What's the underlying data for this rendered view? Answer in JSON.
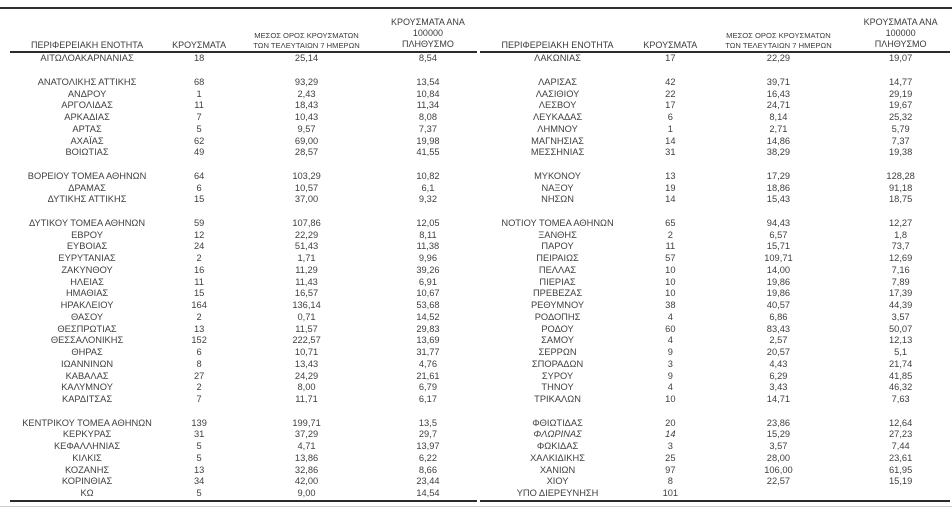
{
  "headers": {
    "region": "ΠΕΡΙΦΕΡΕΙΑΚΗ ΕΝΟΤΗΤΑ",
    "cases": "ΚΡΟΥΣΜΑΤΑ",
    "avg7_line1": "ΜΕΣΟΣ ΟΡΟΣ ΚΡΟΥΣΜΑΤΩΝ",
    "avg7_line2": "ΤΩΝ ΤΕΛΕΥΤΑΙΩΝ 7 ΗΜΕΡΩΝ",
    "per100k_line1": "ΚΡΟΥΣΜΑΤΑ ΑΝΑ 100000",
    "per100k_line2": "ΠΛΗΘΥΣΜΟ"
  },
  "left_table": {
    "rows": [
      {
        "region": "ΑΙΤΩΛΟΑΚΑΡΝΑΝΙΑΣ",
        "cases": "18",
        "avg7": "25,14",
        "per100k": "8,54"
      },
      {
        "spacer": true
      },
      {
        "region": "ΑΝΑΤΟΛΙΚΗΣ ΑΤΤΙΚΗΣ",
        "cases": "68",
        "avg7": "93,29",
        "per100k": "13,54"
      },
      {
        "region": "ΑΝΔΡΟΥ",
        "cases": "1",
        "avg7": "2,43",
        "per100k": "10,84"
      },
      {
        "region": "ΑΡΓΟΛΙΔΑΣ",
        "cases": "11",
        "avg7": "18,43",
        "per100k": "11,34"
      },
      {
        "region": "ΑΡΚΑΔΙΑΣ",
        "cases": "7",
        "avg7": "10,43",
        "per100k": "8,08"
      },
      {
        "region": "ΑΡΤΑΣ",
        "cases": "5",
        "avg7": "9,57",
        "per100k": "7,37"
      },
      {
        "region": "ΑΧΑΪΑΣ",
        "cases": "62",
        "avg7": "69,00",
        "per100k": "19,98"
      },
      {
        "region": "ΒΟΙΩΤΙΑΣ",
        "cases": "49",
        "avg7": "28,57",
        "per100k": "41,55"
      },
      {
        "spacer": true
      },
      {
        "region": "ΒΟΡΕΙΟΥ ΤΟΜΕΑ ΑΘΗΝΩΝ",
        "cases": "64",
        "avg7": "103,29",
        "per100k": "10,82"
      },
      {
        "region": "ΔΡΑΜΑΣ",
        "cases": "6",
        "avg7": "10,57",
        "per100k": "6,1"
      },
      {
        "region": "ΔΥΤΙΚΗΣ ΑΤΤΙΚΗΣ",
        "cases": "15",
        "avg7": "37,00",
        "per100k": "9,32"
      },
      {
        "spacer": true
      },
      {
        "region": "ΔΥΤΙΚΟΥ ΤΟΜΕΑ ΑΘΗΝΩΝ",
        "cases": "59",
        "avg7": "107,86",
        "per100k": "12,05"
      },
      {
        "region": "ΕΒΡΟΥ",
        "cases": "12",
        "avg7": "22,29",
        "per100k": "8,11"
      },
      {
        "region": "ΕΥΒΟΙΑΣ",
        "cases": "24",
        "avg7": "51,43",
        "per100k": "11,38"
      },
      {
        "region": "ΕΥΡΥΤΑΝΙΑΣ",
        "cases": "2",
        "avg7": "1,71",
        "per100k": "9,96"
      },
      {
        "region": "ΖΑΚΥΝΘΟΥ",
        "cases": "16",
        "avg7": "11,29",
        "per100k": "39,26"
      },
      {
        "region": "ΗΛΕΙΑΣ",
        "cases": "11",
        "avg7": "11,43",
        "per100k": "6,91"
      },
      {
        "region": "ΗΜΑΘΙΑΣ",
        "cases": "15",
        "avg7": "16,57",
        "per100k": "10,67"
      },
      {
        "region": "ΗΡΑΚΛΕΙΟΥ",
        "cases": "164",
        "avg7": "136,14",
        "per100k": "53,68"
      },
      {
        "region": "ΘΑΣΟΥ",
        "cases": "2",
        "avg7": "0,71",
        "per100k": "14,52"
      },
      {
        "region": "ΘΕΣΠΡΩΤΙΑΣ",
        "cases": "13",
        "avg7": "11,57",
        "per100k": "29,83"
      },
      {
        "region": "ΘΕΣΣΑΛΟΝΙΚΗΣ",
        "cases": "152",
        "avg7": "222,57",
        "per100k": "13,69"
      },
      {
        "region": "ΘΗΡΑΣ",
        "cases": "6",
        "avg7": "10,71",
        "per100k": "31,77"
      },
      {
        "region": "ΙΩΑΝΝΙΝΩΝ",
        "cases": "8",
        "avg7": "13,43",
        "per100k": "4,76"
      },
      {
        "region": "ΚΑΒΑΛΑΣ",
        "cases": "27",
        "avg7": "24,29",
        "per100k": "21,61"
      },
      {
        "region": "ΚΑΛΥΜΝΟΥ",
        "cases": "2",
        "avg7": "8,00",
        "per100k": "6,79"
      },
      {
        "region": "ΚΑΡΔΙΤΣΑΣ",
        "cases": "7",
        "avg7": "11,71",
        "per100k": "6,17"
      },
      {
        "spacer": true
      },
      {
        "region": "ΚΕΝΤΡΙΚΟΥ ΤΟΜΕΑ ΑΘΗΝΩΝ",
        "cases": "139",
        "avg7": "199,71",
        "per100k": "13,5"
      },
      {
        "region": "ΚΕΡΚΥΡΑΣ",
        "cases": "31",
        "avg7": "37,29",
        "per100k": "29,7"
      },
      {
        "region": "ΚΕΦΑΛΛΗΝΙΑΣ",
        "cases": "5",
        "avg7": "4,71",
        "per100k": "13,97"
      },
      {
        "region": "ΚΙΛΚΙΣ",
        "cases": "5",
        "avg7": "13,86",
        "per100k": "6,22"
      },
      {
        "region": "ΚΟΖΑΝΗΣ",
        "cases": "13",
        "avg7": "32,86",
        "per100k": "8,66"
      },
      {
        "region": "ΚΟΡΙΝΘΙΑΣ",
        "cases": "34",
        "avg7": "42,00",
        "per100k": "23,44"
      },
      {
        "region": "ΚΩ",
        "cases": "5",
        "avg7": "9,00",
        "per100k": "14,54"
      }
    ]
  },
  "right_table": {
    "rows": [
      {
        "region": "ΛΑΚΩΝΙΑΣ",
        "cases": "17",
        "avg7": "22,29",
        "per100k": "19,07"
      },
      {
        "spacer": true
      },
      {
        "region": "ΛΑΡΙΣΑΣ",
        "cases": "42",
        "avg7": "39,71",
        "per100k": "14,77"
      },
      {
        "region": "ΛΑΣΙΘΙΟΥ",
        "cases": "22",
        "avg7": "16,43",
        "per100k": "29,19"
      },
      {
        "region": "ΛΕΣΒΟΥ",
        "cases": "17",
        "avg7": "24,71",
        "per100k": "19,67"
      },
      {
        "region": "ΛΕΥΚΑΔΑΣ",
        "cases": "6",
        "avg7": "8,14",
        "per100k": "25,32"
      },
      {
        "region": "ΛΗΜΝΟΥ",
        "cases": "1",
        "avg7": "2,71",
        "per100k": "5,79"
      },
      {
        "region": "ΜΑΓΝΗΣΙΑΣ",
        "cases": "14",
        "avg7": "14,86",
        "per100k": "7,37"
      },
      {
        "region": "ΜΕΣΣΗΝΙΑΣ",
        "cases": "31",
        "avg7": "38,29",
        "per100k": "19,38"
      },
      {
        "spacer": true
      },
      {
        "region": "ΜΥΚΟΝΟΥ",
        "cases": "13",
        "avg7": "17,29",
        "per100k": "128,28"
      },
      {
        "region": "ΝΑΞΟΥ",
        "cases": "19",
        "avg7": "18,86",
        "per100k": "91,18"
      },
      {
        "region": "ΝΗΣΩΝ",
        "cases": "14",
        "avg7": "15,43",
        "per100k": "18,75"
      },
      {
        "spacer": true
      },
      {
        "region": "ΝΟΤΙΟΥ ΤΟΜΕΑ ΑΘΗΝΩΝ",
        "cases": "65",
        "avg7": "94,43",
        "per100k": "12,27"
      },
      {
        "region": "ΞΑΝΘΗΣ",
        "cases": "2",
        "avg7": "6,57",
        "per100k": "1,8"
      },
      {
        "region": "ΠΑΡΟΥ",
        "cases": "11",
        "avg7": "15,71",
        "per100k": "73,7"
      },
      {
        "region": "ΠΕΙΡΑΙΩΣ",
        "cases": "57",
        "avg7": "109,71",
        "per100k": "12,69"
      },
      {
        "region": "ΠΕΛΛΑΣ",
        "cases": "10",
        "avg7": "14,00",
        "per100k": "7,16"
      },
      {
        "region": "ΠΙΕΡΙΑΣ",
        "cases": "10",
        "avg7": "19,86",
        "per100k": "7,89"
      },
      {
        "region": "ΠΡΕΒΕΖΑΣ",
        "cases": "10",
        "avg7": "19,86",
        "per100k": "17,39"
      },
      {
        "region": "ΡΕΘΥΜΝΟΥ",
        "cases": "38",
        "avg7": "40,57",
        "per100k": "44,39"
      },
      {
        "region": "ΡΟΔΟΠΗΣ",
        "cases": "4",
        "avg7": "6,86",
        "per100k": "3,57"
      },
      {
        "region": "ΡΟΔΟΥ",
        "cases": "60",
        "avg7": "83,43",
        "per100k": "50,07"
      },
      {
        "region": "ΣΑΜΟΥ",
        "cases": "4",
        "avg7": "2,57",
        "per100k": "12,13"
      },
      {
        "region": "ΣΕΡΡΩΝ",
        "cases": "9",
        "avg7": "20,57",
        "per100k": "5,1"
      },
      {
        "region": "ΣΠΟΡΑΔΩΝ",
        "cases": "3",
        "avg7": "4,43",
        "per100k": "21,74"
      },
      {
        "region": "ΣΥΡΟΥ",
        "cases": "9",
        "avg7": "6,29",
        "per100k": "41,85"
      },
      {
        "region": "ΤΗΝΟΥ",
        "cases": "4",
        "avg7": "3,43",
        "per100k": "46,32"
      },
      {
        "region": "ΤΡΙΚΑΛΩΝ",
        "cases": "10",
        "avg7": "14,71",
        "per100k": "7,63"
      },
      {
        "spacer": true
      },
      {
        "region": "ΦΘΙΩΤΙΔΑΣ",
        "cases": "20",
        "avg7": "23,86",
        "per100k": "12,64"
      },
      {
        "region": "ΦΛΩΡΙΝΑΣ",
        "cases": "14",
        "avg7": "15,29",
        "per100k": "27,23",
        "italic": true
      },
      {
        "region": "ΦΩΚΙΔΑΣ",
        "cases": "3",
        "avg7": "3,57",
        "per100k": "7,44"
      },
      {
        "region": "ΧΑΛΚΙΔΙΚΗΣ",
        "cases": "25",
        "avg7": "28,00",
        "per100k": "23,61"
      },
      {
        "region": "ΧΑΝΙΩΝ",
        "cases": "97",
        "avg7": "106,00",
        "per100k": "61,95"
      },
      {
        "region": "ΧΙΟΥ",
        "cases": "8",
        "avg7": "22,57",
        "per100k": "15,19"
      },
      {
        "region": "ΥΠΟ ΔΙΕΡΕΥΝΗΣΗ",
        "cases": "101",
        "avg7": "",
        "per100k": ""
      }
    ]
  }
}
